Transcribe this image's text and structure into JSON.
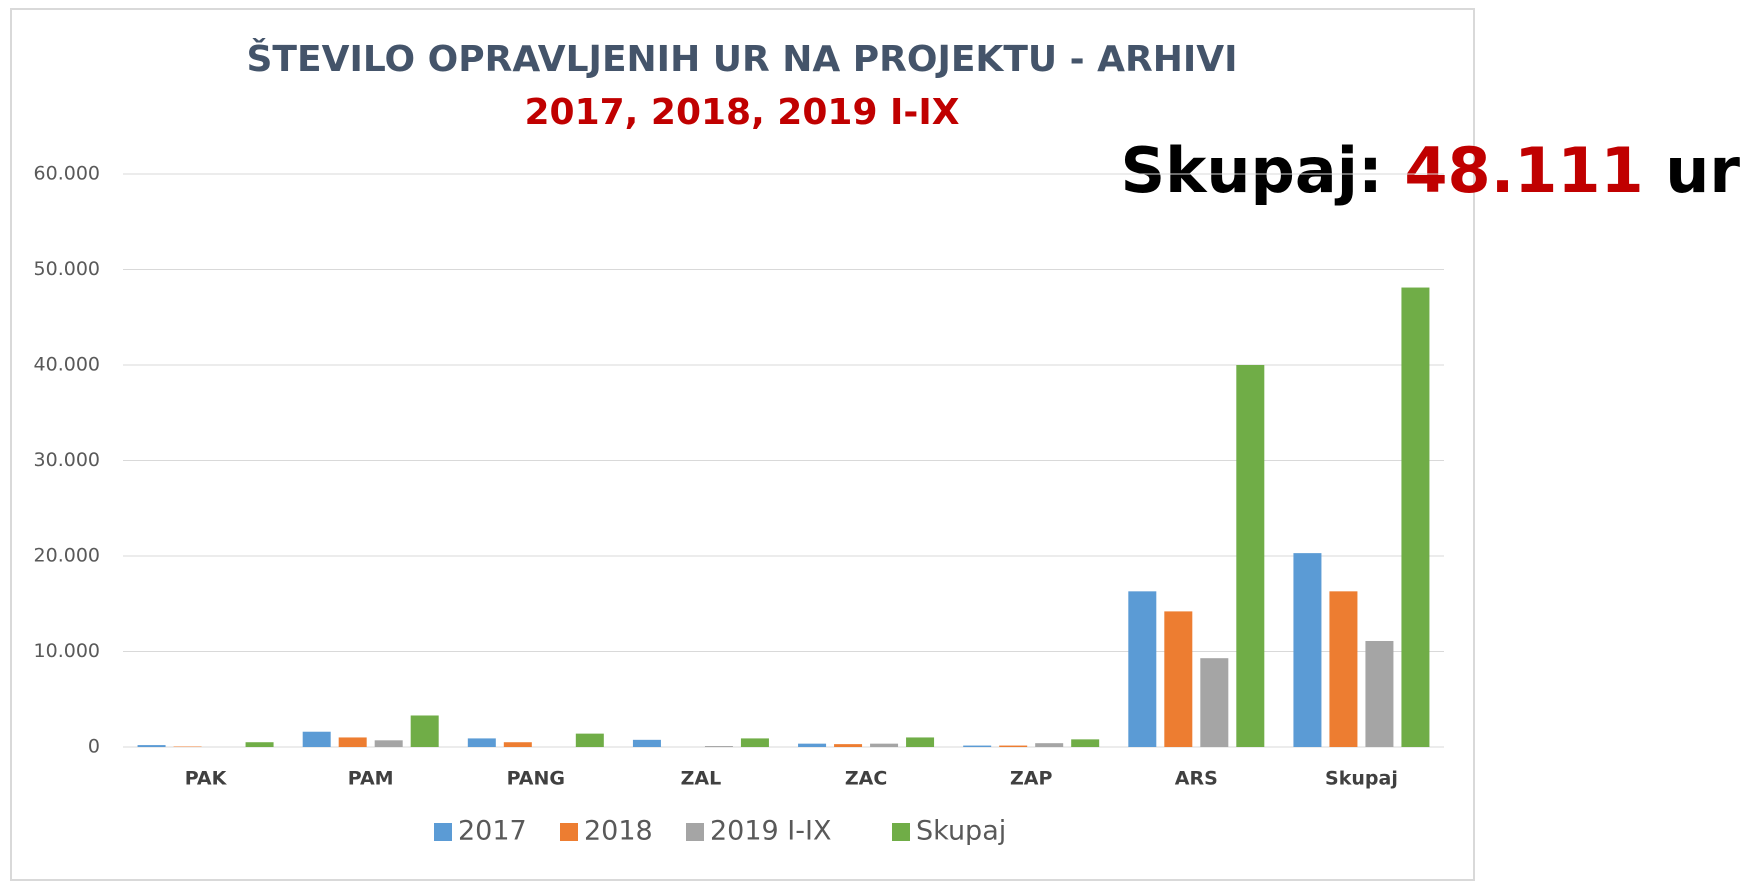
{
  "chart_data": {
    "type": "bar",
    "title": "ŠTEVILO OPRAVLJENIH UR NA PROJEKTU - ARHIVI",
    "subtitle": "2017, 2018, 2019 I-IX",
    "annotation": {
      "label": "Skupaj:",
      "value": "48.111",
      "unit": "ur"
    },
    "categories": [
      "PAK",
      "PAM",
      "PANG",
      "ZAL",
      "ZAC",
      "ZAP",
      "ARS",
      "Skupaj"
    ],
    "series": [
      {
        "name": "2017",
        "color": "#5b9bd5",
        "values": [
          200,
          1600,
          900,
          750,
          350,
          150,
          16300,
          20300
        ]
      },
      {
        "name": "2018",
        "color": "#ed7d31",
        "values": [
          50,
          1000,
          500,
          0,
          300,
          150,
          14200,
          16300
        ]
      },
      {
        "name": "2019 I-IX",
        "color": "#a5a5a5",
        "values": [
          0,
          700,
          0,
          100,
          350,
          400,
          9300,
          11100
        ]
      },
      {
        "name": "Skupaj",
        "color": "#70ad47",
        "values": [
          500,
          3300,
          1400,
          900,
          1000,
          800,
          40000,
          48111
        ]
      }
    ],
    "ylim": [
      0,
      60000
    ],
    "yticks": [
      0,
      {
        "value": 10000,
        "label": "10.000"
      },
      {
        "value": 20000,
        "label": "20.000"
      },
      {
        "value": 30000,
        "label": "30.000"
      },
      {
        "value": 40000,
        "label": "40.000"
      },
      {
        "value": 50000,
        "label": "50.000"
      },
      {
        "value": 60000,
        "label": "60.000"
      }
    ],
    "grid": true,
    "legend": "bottom"
  }
}
